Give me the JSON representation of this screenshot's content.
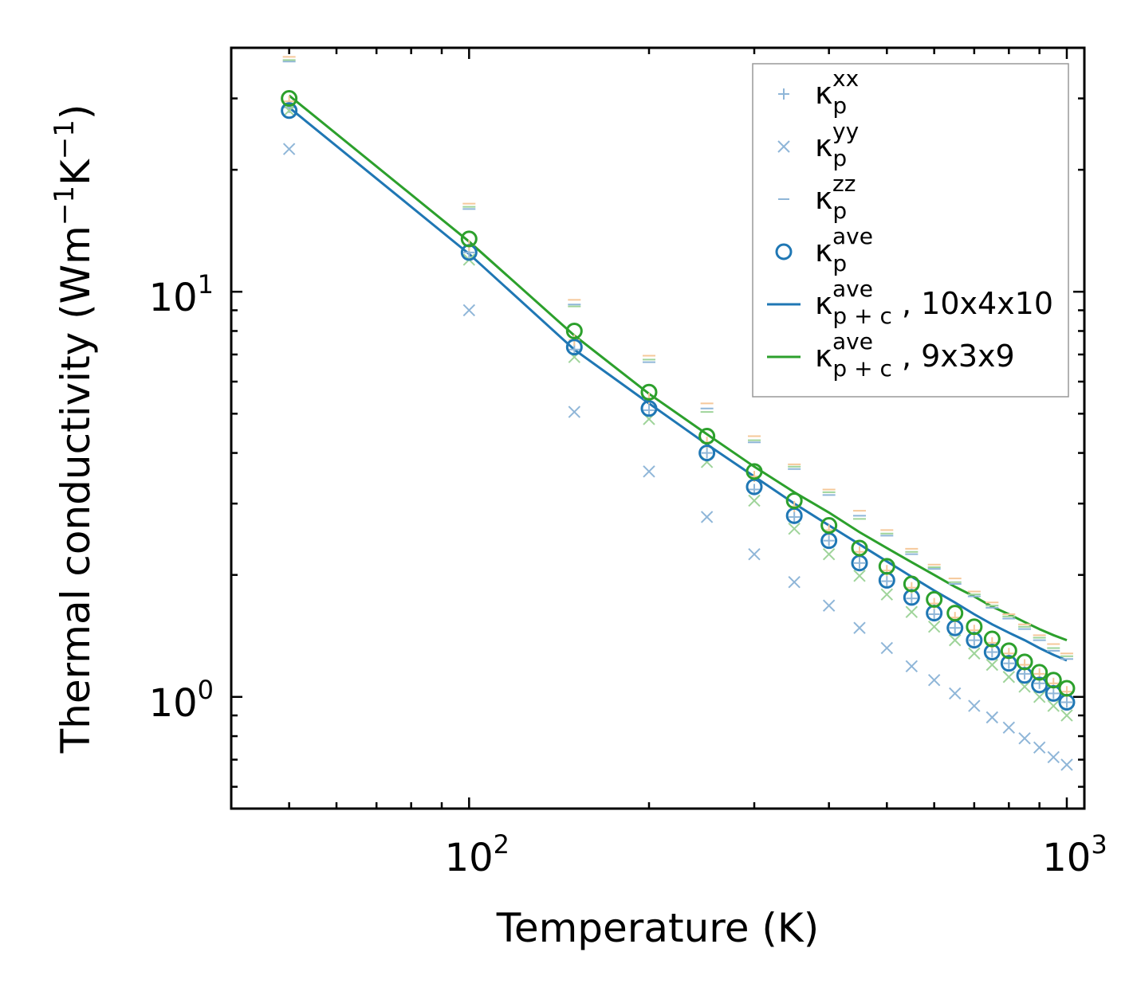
{
  "chart_data": {
    "type": "scatter",
    "xscale": "log",
    "yscale": "log",
    "xlim": [
      40,
      1070
    ],
    "ylim": [
      0.53,
      40
    ],
    "xlabel": "Temperature (K)",
    "ylabel_prefix": "Thermal conductivity (Wm",
    "ylabel_sup1": "−1",
    "ylabel_mid": "K",
    "ylabel_sup2": "−1",
    "ylabel_suffix": ")",
    "x_ticks": [
      {
        "value": 100,
        "base": "10",
        "exp": "2"
      },
      {
        "value": 1000,
        "base": "10",
        "exp": "3"
      }
    ],
    "y_ticks": [
      {
        "value": 1,
        "base": "10",
        "exp": "0"
      },
      {
        "value": 10,
        "base": "10",
        "exp": "1"
      }
    ],
    "x": [
      50,
      100,
      150,
      200,
      250,
      300,
      350,
      400,
      450,
      500,
      550,
      600,
      650,
      700,
      750,
      800,
      850,
      900,
      950,
      1000
    ],
    "series": [
      {
        "name": "kp_xx_10x4x10",
        "marker": "plus",
        "color": "#8fb6d8",
        "values": [
          28.5,
          12.5,
          7.2,
          5.1,
          4.0,
          3.25,
          2.78,
          2.43,
          2.14,
          1.93,
          1.75,
          1.6,
          1.48,
          1.38,
          1.29,
          1.21,
          1.14,
          1.08,
          1.02,
          0.97
        ]
      },
      {
        "name": "kp_yy_10x4x10",
        "marker": "x",
        "color": "#8fb6d8",
        "values": [
          22.5,
          9.0,
          5.05,
          3.6,
          2.78,
          2.25,
          1.92,
          1.68,
          1.48,
          1.32,
          1.19,
          1.1,
          1.02,
          0.95,
          0.89,
          0.84,
          0.79,
          0.75,
          0.71,
          0.68
        ]
      },
      {
        "name": "kp_zz_10x4x10",
        "marker": "dash",
        "color": "#8fb6d8",
        "values": [
          37.0,
          16.0,
          9.3,
          6.7,
          5.15,
          4.25,
          3.65,
          3.15,
          2.8,
          2.5,
          2.25,
          2.07,
          1.9,
          1.77,
          1.66,
          1.56,
          1.47,
          1.38,
          1.3,
          1.24
        ]
      },
      {
        "name": "kp_xx_9x3x9",
        "marker": "plus",
        "color": "#f5c89a",
        "values": [
          29.5,
          13.0,
          7.6,
          5.45,
          4.25,
          3.5,
          2.95,
          2.58,
          2.28,
          2.05,
          1.86,
          1.7,
          1.57,
          1.46,
          1.36,
          1.28,
          1.2,
          1.14,
          1.08,
          1.03
        ]
      },
      {
        "name": "kp_yy_9x3x9",
        "marker": "x",
        "color": "#9fd49a",
        "values": [
          28.0,
          12.0,
          6.9,
          4.85,
          3.8,
          3.05,
          2.6,
          2.25,
          1.99,
          1.79,
          1.62,
          1.49,
          1.38,
          1.28,
          1.2,
          1.12,
          1.06,
          1.0,
          0.95,
          0.9
        ]
      },
      {
        "name": "kp_zz_9x3x9",
        "marker": "dash",
        "color": "#f5c89a",
        "values": [
          38.0,
          16.5,
          9.55,
          6.95,
          5.3,
          4.4,
          3.75,
          3.25,
          2.88,
          2.58,
          2.32,
          2.12,
          1.96,
          1.82,
          1.71,
          1.6,
          1.51,
          1.42,
          1.35,
          1.28
        ]
      },
      {
        "name": "kp_zz_9x3x9_green",
        "marker": "dash",
        "color": "#9fd49a",
        "values": [
          37.3,
          16.2,
          9.2,
          6.8,
          5.05,
          4.3,
          3.7,
          3.2,
          2.75,
          2.53,
          2.28,
          2.09,
          1.92,
          1.79,
          1.68,
          1.58,
          1.49,
          1.4,
          1.32,
          1.26
        ]
      },
      {
        "name": "kp_ave_10x4x10",
        "marker": "circle",
        "color": "#1f77b4",
        "values": [
          28.0,
          12.5,
          7.3,
          5.15,
          4.0,
          3.3,
          2.8,
          2.43,
          2.14,
          1.94,
          1.76,
          1.61,
          1.48,
          1.38,
          1.29,
          1.21,
          1.13,
          1.07,
          1.02,
          0.97
        ]
      },
      {
        "name": "kp_ave_9x3x9",
        "marker": "circle",
        "color": "#2ca02c",
        "values": [
          30.0,
          13.5,
          8.0,
          5.65,
          4.4,
          3.6,
          3.05,
          2.65,
          2.33,
          2.1,
          1.9,
          1.74,
          1.61,
          1.49,
          1.39,
          1.3,
          1.22,
          1.15,
          1.1,
          1.05
        ]
      },
      {
        "name": "kpc_ave_10x4x10",
        "marker": "line",
        "color": "#1f77b4",
        "values": [
          28.5,
          12.4,
          7.2,
          5.3,
          4.2,
          3.5,
          3.0,
          2.65,
          2.38,
          2.16,
          1.98,
          1.83,
          1.71,
          1.6,
          1.51,
          1.44,
          1.38,
          1.32,
          1.27,
          1.23
        ]
      },
      {
        "name": "kpc_ave_9x3x9",
        "marker": "line",
        "color": "#2ca02c",
        "values": [
          30.5,
          13.3,
          7.8,
          5.6,
          4.45,
          3.7,
          3.2,
          2.85,
          2.55,
          2.33,
          2.15,
          2.0,
          1.87,
          1.77,
          1.67,
          1.6,
          1.53,
          1.47,
          1.42,
          1.38
        ]
      }
    ],
    "legend": {
      "placement": "top-right",
      "entries": [
        {
          "marker": "plus",
          "color": "#8fb6d8",
          "main": "κ",
          "sub": "p",
          "sup": "xx",
          "suffix": ""
        },
        {
          "marker": "x",
          "color": "#8fb6d8",
          "main": "κ",
          "sub": "p",
          "sup": "yy",
          "suffix": ""
        },
        {
          "marker": "dash",
          "color": "#8fb6d8",
          "main": "κ",
          "sub": "p",
          "sup": "zz",
          "suffix": ""
        },
        {
          "marker": "circle",
          "color": "#1f77b4",
          "main": "κ",
          "sub": "p",
          "sup": "ave",
          "suffix": ""
        },
        {
          "marker": "line",
          "color": "#1f77b4",
          "main": "κ",
          "sub": "p + c",
          "sup": "ave",
          "suffix": ", 10x4x10"
        },
        {
          "marker": "line",
          "color": "#2ca02c",
          "main": "κ",
          "sub": "p + c",
          "sup": "ave",
          "suffix": ", 9x3x9"
        }
      ]
    }
  }
}
